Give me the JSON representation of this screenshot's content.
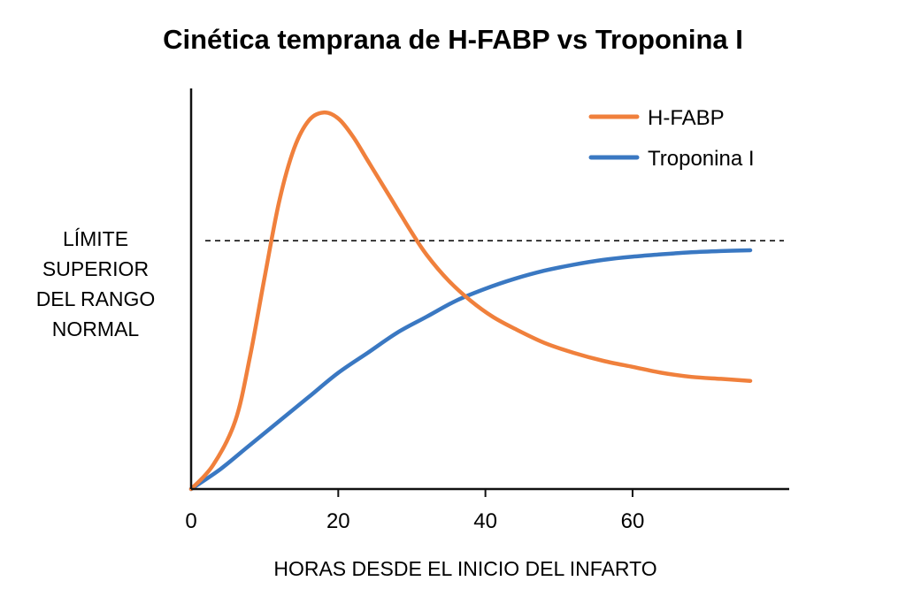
{
  "chart_data": {
    "type": "line",
    "title": "Cinética temprana de H-FABP vs Troponina I",
    "xlabel": "HORAS DESDE EL INICIO DEL INFARTO",
    "ylabel": "",
    "xlim": [
      0,
      82
    ],
    "ylim": [
      0,
      100
    ],
    "x_ticks": [
      0,
      20,
      40,
      60
    ],
    "y_ticks": [],
    "grid": false,
    "legend_position": "top-right",
    "reference_line": {
      "label": [
        "LÍMITE",
        "SUPERIOR",
        "DEL RANGO",
        "NORMAL"
      ],
      "y": 62,
      "style": "dashed"
    },
    "series": [
      {
        "name": "H-FABP",
        "color": "#f0803c",
        "x": [
          0,
          3,
          6,
          8,
          10,
          12,
          14,
          16,
          18,
          20,
          22,
          24,
          26,
          28,
          30,
          32,
          35,
          38,
          41,
          44,
          48,
          52,
          56,
          60,
          64,
          68,
          72,
          76
        ],
        "y": [
          0,
          6,
          17,
          33,
          53,
          72,
          85,
          92,
          94,
          92.5,
          88,
          82,
          76,
          70,
          64,
          58.5,
          52,
          47,
          43,
          40,
          36.5,
          34,
          32,
          30.5,
          29,
          28,
          27.5,
          27
        ]
      },
      {
        "name": "Troponina I",
        "color": "#3a78c2",
        "x": [
          0,
          4,
          8,
          12,
          16,
          20,
          24,
          28,
          32,
          36,
          40,
          44,
          48,
          52,
          56,
          60,
          64,
          68,
          72,
          76
        ],
        "y": [
          0,
          5,
          11,
          17,
          23,
          29,
          34,
          39,
          43,
          47,
          50,
          52.5,
          54.5,
          56,
          57.2,
          58,
          58.6,
          59.1,
          59.4,
          59.6
        ]
      }
    ]
  }
}
